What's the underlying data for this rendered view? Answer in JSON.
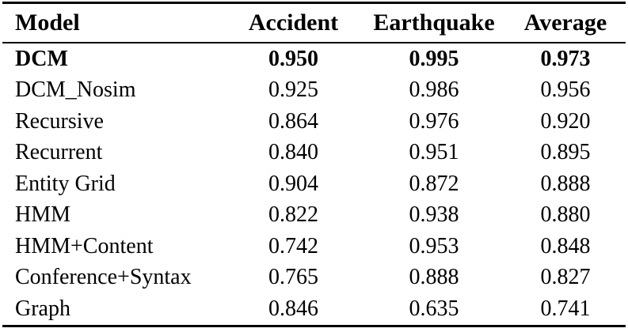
{
  "colors": {
    "background": "#ffffff",
    "text": "#000000",
    "rule": "#000000"
  },
  "table": {
    "columns": [
      {
        "label": "Model"
      },
      {
        "label": "Accident"
      },
      {
        "label": "Earthquake"
      },
      {
        "label": "Average"
      }
    ],
    "rows": [
      {
        "bold": true,
        "cells": [
          "DCM",
          "0.950",
          "0.995",
          "0.973"
        ]
      },
      {
        "bold": false,
        "cells": [
          "DCM_Nosim",
          "0.925",
          "0.986",
          "0.956"
        ]
      },
      {
        "bold": false,
        "cells": [
          "Recursive",
          "0.864",
          "0.976",
          "0.920"
        ]
      },
      {
        "bold": false,
        "cells": [
          "Recurrent",
          "0.840",
          "0.951",
          "0.895"
        ]
      },
      {
        "bold": false,
        "cells": [
          "Entity Grid",
          "0.904",
          "0.872",
          "0.888"
        ]
      },
      {
        "bold": false,
        "cells": [
          "HMM",
          "0.822",
          "0.938",
          "0.880"
        ]
      },
      {
        "bold": false,
        "cells": [
          "HMM+Content",
          "0.742",
          "0.953",
          "0.848"
        ]
      },
      {
        "bold": false,
        "cells": [
          "Conference+Syntax",
          "0.765",
          "0.888",
          "0.827"
        ]
      },
      {
        "bold": false,
        "cells": [
          "Graph",
          "0.846",
          "0.635",
          "0.741"
        ]
      }
    ]
  }
}
